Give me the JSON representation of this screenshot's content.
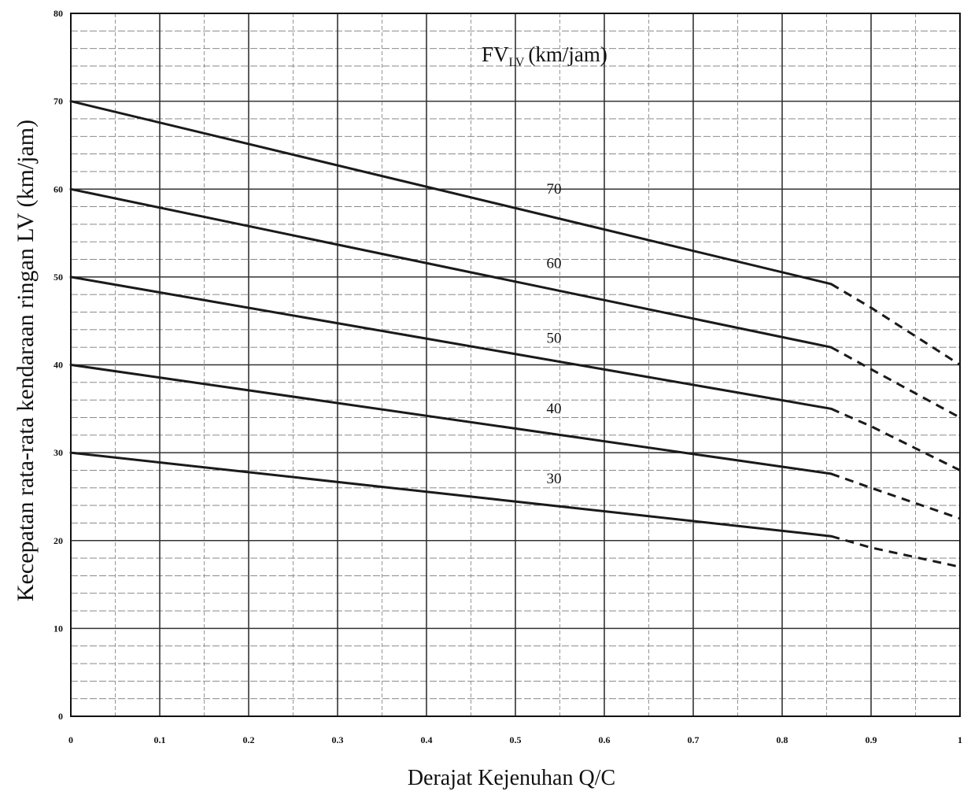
{
  "chart_data": {
    "type": "line",
    "xlabel": "Derajat Kejenuhan Q/C",
    "ylabel": "Kecepatan rata-rata kendaraan ringan LV (km/jam)",
    "legend_title": {
      "main": "FV",
      "subscript": "LV",
      "unit": "(km/jam)"
    },
    "xlim": [
      0,
      1
    ],
    "ylim": [
      0,
      80
    ],
    "x_ticks": [
      "0",
      "0.1",
      "0.2",
      "0.3",
      "0.4",
      "0.5",
      "0.6",
      "0.7",
      "0.8",
      "0.9",
      "1"
    ],
    "y_ticks": [
      "0",
      "10",
      "20",
      "30",
      "40",
      "50",
      "60",
      "70",
      "80"
    ],
    "grid": true,
    "legend_placement": "top-center",
    "line_color": "#1a1a1a",
    "series": [
      {
        "name": "70",
        "solid": [
          [
            0,
            70
          ],
          [
            0.855,
            49.2
          ]
        ],
        "dashed": [
          [
            0.855,
            49.2
          ],
          [
            0.9,
            46.5
          ],
          [
            1,
            40
          ]
        ]
      },
      {
        "name": "60",
        "solid": [
          [
            0,
            60
          ],
          [
            0.855,
            42
          ]
        ],
        "dashed": [
          [
            0.855,
            42
          ],
          [
            0.9,
            39.5
          ],
          [
            1,
            34
          ]
        ]
      },
      {
        "name": "50",
        "solid": [
          [
            0,
            50
          ],
          [
            0.855,
            35
          ]
        ],
        "dashed": [
          [
            0.855,
            35
          ],
          [
            0.9,
            33
          ],
          [
            1,
            28
          ]
        ]
      },
      {
        "name": "40",
        "solid": [
          [
            0,
            40
          ],
          [
            0.855,
            27.6
          ]
        ],
        "dashed": [
          [
            0.855,
            27.6
          ],
          [
            0.9,
            26
          ],
          [
            1,
            22.5
          ]
        ]
      },
      {
        "name": "30",
        "solid": [
          [
            0,
            30
          ],
          [
            0.855,
            20.5
          ]
        ],
        "dashed": [
          [
            0.855,
            20.5
          ],
          [
            0.9,
            19.2
          ],
          [
            1,
            17
          ]
        ]
      }
    ],
    "series_label_positions": [
      {
        "x": 0.535,
        "y": 59.5
      },
      {
        "x": 0.535,
        "y": 51
      },
      {
        "x": 0.535,
        "y": 42.5
      },
      {
        "x": 0.535,
        "y": 34.5
      },
      {
        "x": 0.535,
        "y": 26.5
      }
    ]
  }
}
